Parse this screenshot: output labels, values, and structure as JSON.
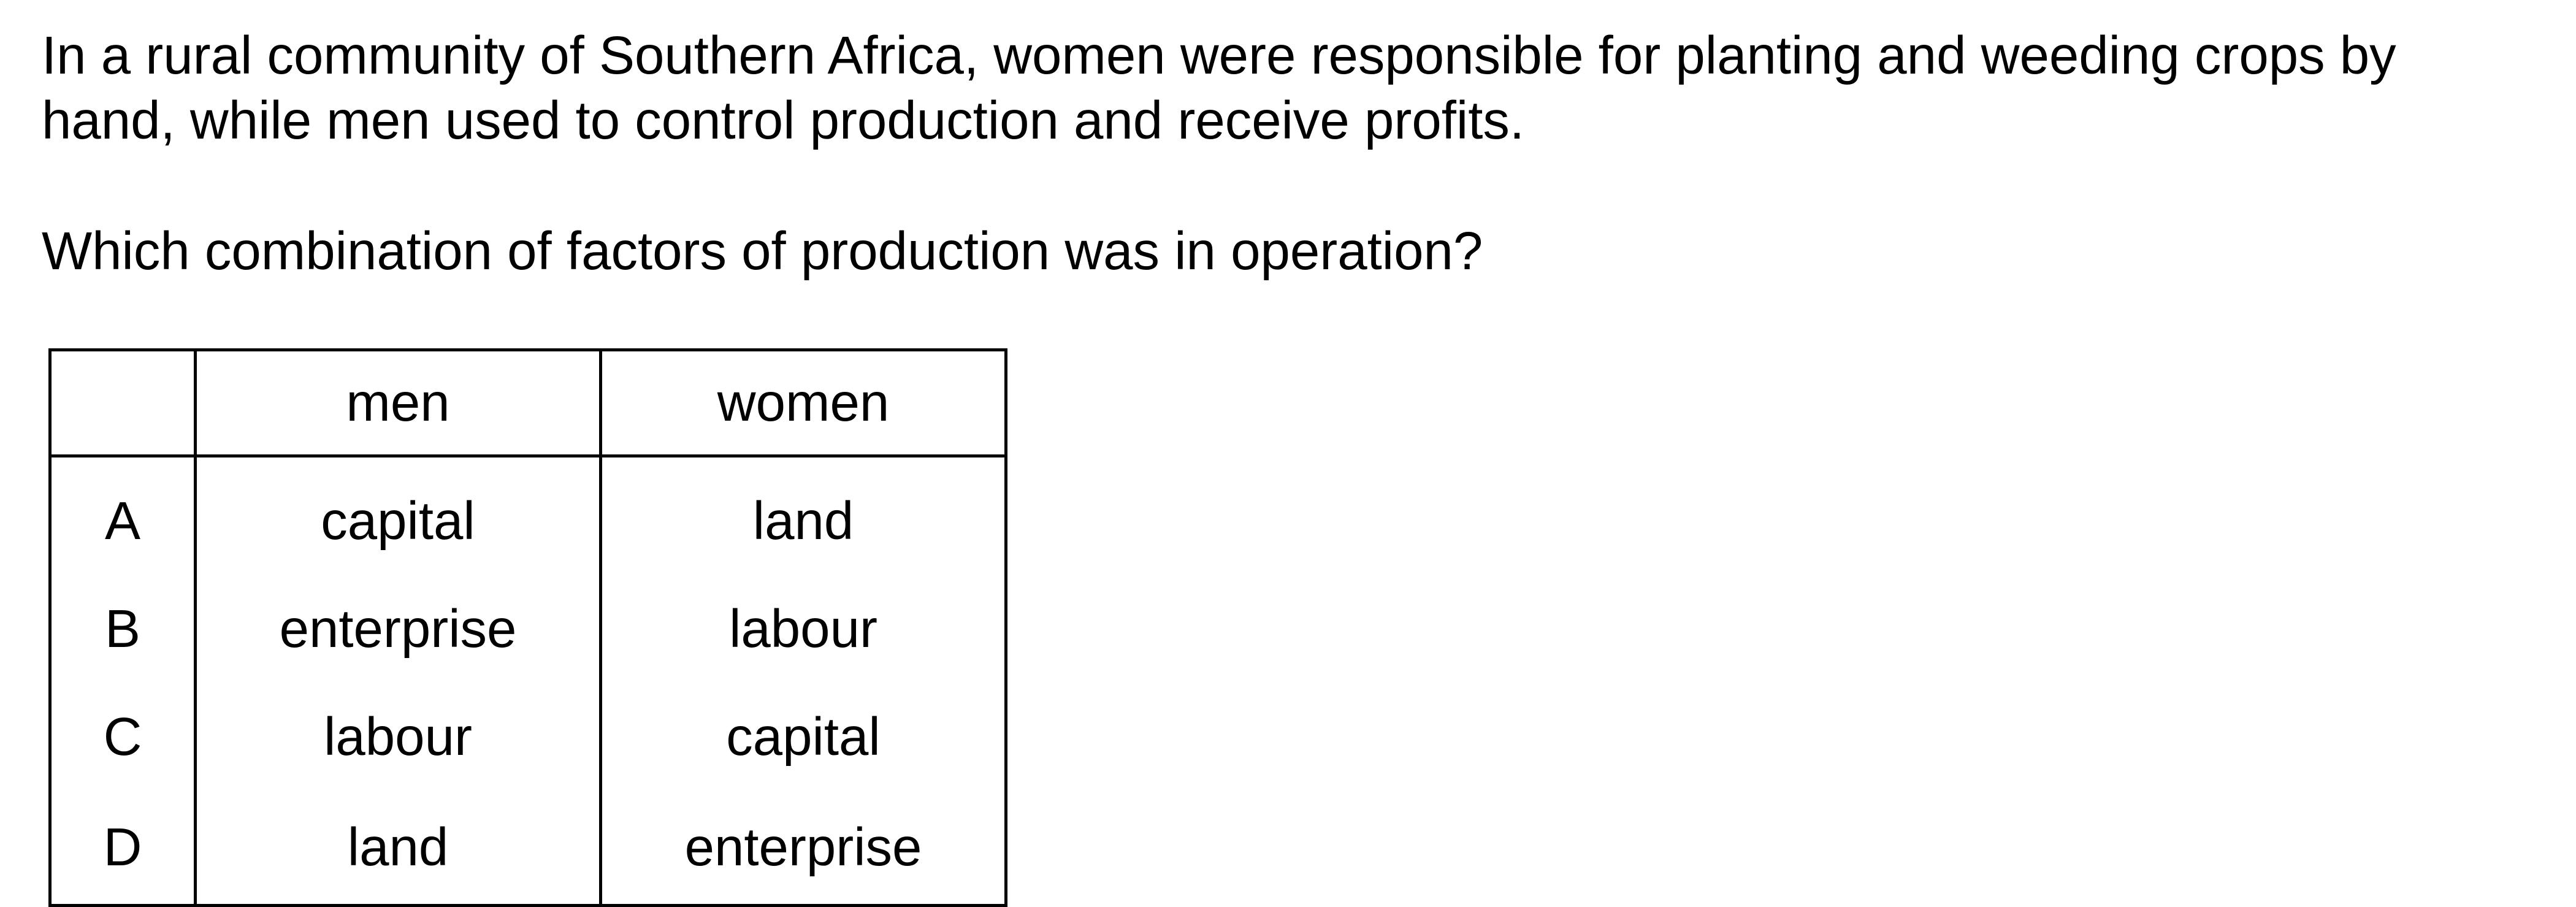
{
  "question": {
    "stem": "In a rural community of Southern Africa, women were responsible for planting and weeding crops by hand, while men used to control production and receive profits.",
    "prompt": "Which combination of factors of production was in operation?"
  },
  "table": {
    "headers": [
      "",
      "men",
      "women"
    ],
    "rows": [
      {
        "letter": "A",
        "men": "capital",
        "women": "land"
      },
      {
        "letter": "B",
        "men": "enterprise",
        "women": "labour"
      },
      {
        "letter": "C",
        "men": "labour",
        "women": "capital"
      },
      {
        "letter": "D",
        "men": "land",
        "women": "enterprise"
      }
    ]
  }
}
